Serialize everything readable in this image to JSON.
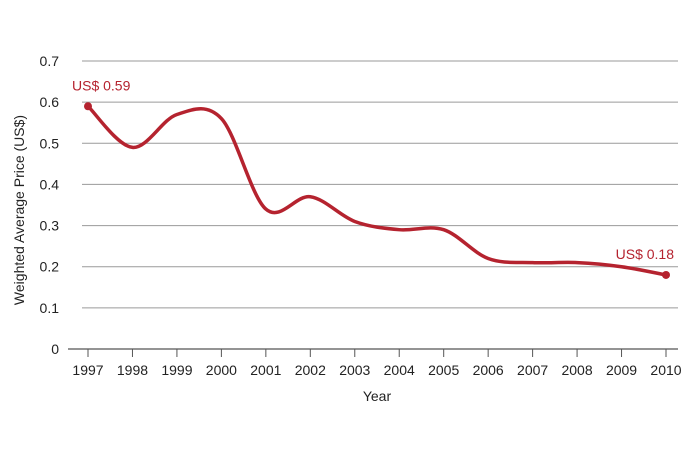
{
  "chart_data": {
    "type": "line",
    "title": "",
    "xlabel": "Year",
    "ylabel": "Weighted Average Price (US$)",
    "x": [
      "1997",
      "1998",
      "1999",
      "2000",
      "2001",
      "2002",
      "2003",
      "2004",
      "2005",
      "2006",
      "2007",
      "2008",
      "2009",
      "2010"
    ],
    "y_ticks": [
      "0",
      "0.1",
      "0.2",
      "0.3",
      "0.4",
      "0.5",
      "0.6",
      "0.7"
    ],
    "ylim": [
      0,
      0.7
    ],
    "grid": true,
    "legend": "none",
    "series": [
      {
        "name": "",
        "color": "#b5232f",
        "values": [
          0.59,
          0.49,
          0.57,
          0.56,
          0.34,
          0.37,
          0.31,
          0.29,
          0.29,
          0.22,
          0.21,
          0.21,
          0.2,
          0.18
        ]
      }
    ],
    "annotations": [
      {
        "text": "US$ 0.59",
        "x": "1997",
        "y": 0.59
      },
      {
        "text": "US$ 0.18",
        "x": "2010",
        "y": 0.18
      }
    ]
  }
}
